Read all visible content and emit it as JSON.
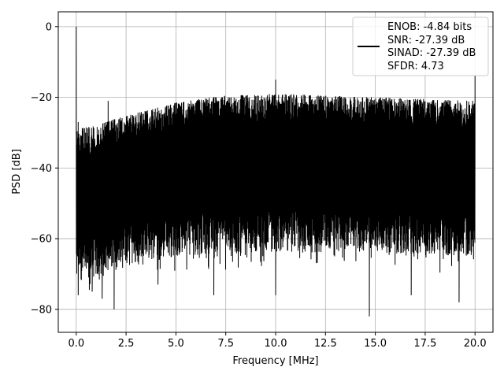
{
  "chart_data": {
    "type": "line",
    "xlabel": "Frequency [MHz]",
    "ylabel": "PSD [dB]",
    "xlim": [
      -0.9,
      20.9
    ],
    "ylim": [
      -86.5,
      4.2
    ],
    "xticks": [
      0.0,
      2.5,
      5.0,
      7.5,
      10.0,
      12.5,
      15.0,
      17.5,
      20.0
    ],
    "xtick_labels": [
      "0.0",
      "2.5",
      "5.0",
      "7.5",
      "10.0",
      "12.5",
      "15.0",
      "17.5",
      "20.0"
    ],
    "yticks": [
      0,
      -20,
      -40,
      -60,
      -80
    ],
    "ytick_labels": [
      "0",
      "−20",
      "−40",
      "−60",
      "−80"
    ],
    "grid": true,
    "legend_position": "top-right",
    "legend_lines": [
      "ENOB: -4.84 bits",
      "SNR: -27.39 dB",
      "SINAD: -27.39 dB",
      "SFDR: 4.73"
    ],
    "series": [
      {
        "color": "#000000",
        "noise_floor_upper": [
          {
            "x": 0.0,
            "y": -29
          },
          {
            "x": 1.0,
            "y": -28
          },
          {
            "x": 2.0,
            "y": -26
          },
          {
            "x": 3.0,
            "y": -24.5
          },
          {
            "x": 4.0,
            "y": -23
          },
          {
            "x": 5.0,
            "y": -21.5
          },
          {
            "x": 6.0,
            "y": -20.5
          },
          {
            "x": 7.5,
            "y": -19.5
          },
          {
            "x": 10.0,
            "y": -19
          },
          {
            "x": 12.5,
            "y": -19.5
          },
          {
            "x": 15.0,
            "y": -20
          },
          {
            "x": 17.5,
            "y": -20.5
          },
          {
            "x": 20.0,
            "y": -21
          }
        ],
        "noise_floor_lower": [
          {
            "x": 0.0,
            "y": -66
          },
          {
            "x": 1.0,
            "y": -65
          },
          {
            "x": 2.0,
            "y": -63
          },
          {
            "x": 3.0,
            "y": -61
          },
          {
            "x": 5.0,
            "y": -59
          },
          {
            "x": 7.5,
            "y": -58
          },
          {
            "x": 10.0,
            "y": -58
          },
          {
            "x": 12.5,
            "y": -58
          },
          {
            "x": 15.0,
            "y": -58
          },
          {
            "x": 17.5,
            "y": -58.5
          },
          {
            "x": 20.0,
            "y": -59
          }
        ],
        "peaks": [
          {
            "x": 0.0,
            "y": 0
          },
          {
            "x": 0.1,
            "y": -27
          },
          {
            "x": 1.6,
            "y": -21
          },
          {
            "x": 10.0,
            "y": -15
          },
          {
            "x": 20.0,
            "y": -14
          }
        ],
        "dips": [
          {
            "x": 0.1,
            "y": -76
          },
          {
            "x": 0.8,
            "y": -75
          },
          {
            "x": 1.3,
            "y": -77
          },
          {
            "x": 1.9,
            "y": -80
          },
          {
            "x": 4.1,
            "y": -73
          },
          {
            "x": 6.9,
            "y": -76
          },
          {
            "x": 10.0,
            "y": -76
          },
          {
            "x": 14.7,
            "y": -82
          },
          {
            "x": 16.8,
            "y": -76
          },
          {
            "x": 19.2,
            "y": -78
          }
        ]
      }
    ]
  }
}
